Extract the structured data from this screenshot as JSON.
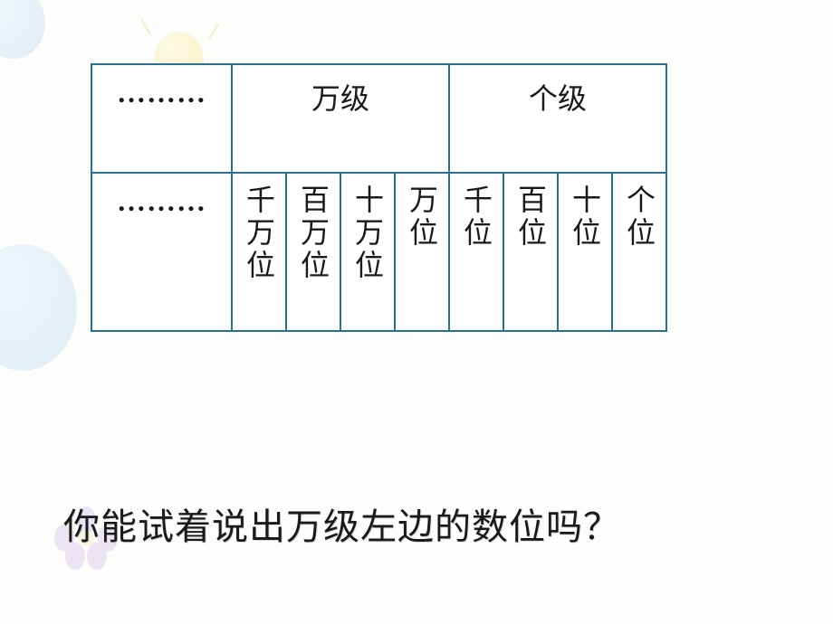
{
  "background": {
    "base_color": "#fdfdfb",
    "balloon_colors": [
      "#a8d0ea",
      "#b4d6ee",
      "#f0e58f"
    ],
    "flower_petal_color": "#d9c8e8",
    "flower_center_color": "#f2eec2"
  },
  "table": {
    "border_color": "#2a708f",
    "cell_bg": "#ffffff",
    "font_size": 32,
    "row_groups": {
      "ellipsis": "………",
      "groups": [
        "万级",
        "个级"
      ]
    },
    "row_places": {
      "ellipsis": "………",
      "places": [
        "千万位",
        "百万位",
        "十万位",
        "万位",
        "千位",
        "百位",
        "十位",
        "个位"
      ]
    },
    "column_widths": {
      "ellipsis": 155,
      "place": 60
    }
  },
  "question": {
    "text": "你能试着说出万级左边的数位吗？",
    "font_size": 40,
    "color": "#1a1a1a"
  }
}
